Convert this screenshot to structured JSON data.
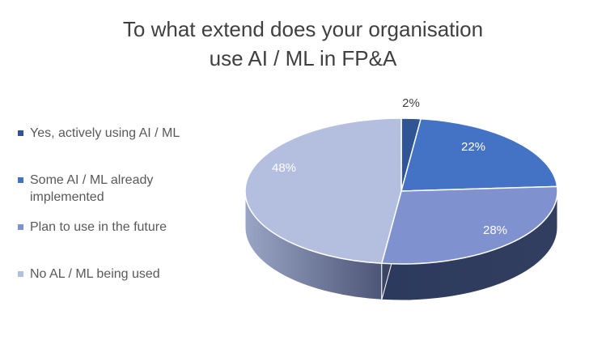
{
  "chart_data": {
    "type": "pie",
    "title": "To what extend does your organisation use AI / ML in FP&A",
    "title_lines": [
      "To what extend does your organisation",
      "use AI / ML in FP&A"
    ],
    "categories": [
      "Yes, actively using AI / ML",
      "Some AI / ML already implemented",
      "Plan to use in the future",
      "No AL / ML being used"
    ],
    "values": [
      2,
      22,
      28,
      48
    ],
    "data_labels": [
      "2%",
      "22%",
      "28%",
      "48%"
    ],
    "colors": [
      "#2F5597",
      "#4472C4",
      "#7F92CF",
      "#B4BEDF"
    ],
    "legend_position": "left",
    "style": "3d-pie"
  }
}
